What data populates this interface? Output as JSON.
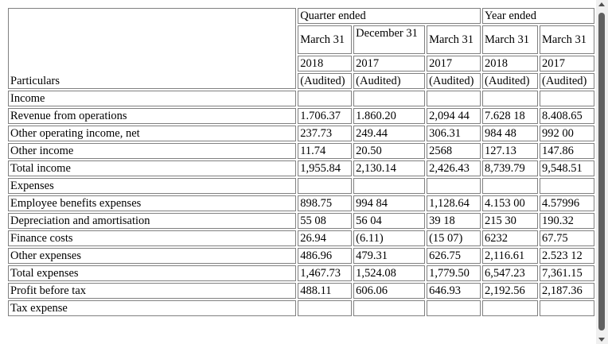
{
  "header": {
    "particulars": "Particulars",
    "quarter_ended": "Quarter ended",
    "year_ended": "Year ended",
    "dates": [
      "March 31",
      "December 31",
      "March 31",
      "March 31",
      "March 31"
    ],
    "years": [
      "2018",
      "2017",
      "2017",
      "2018",
      "2017"
    ],
    "audit": [
      "(Audited)",
      "(Audited)",
      "(Audited)",
      "(Audited)",
      "(Audited)"
    ]
  },
  "rows": [
    {
      "label": "Income",
      "values": [
        "",
        "",
        "",
        "",
        ""
      ]
    },
    {
      "label": "Revenue from operations",
      "values": [
        "1.706.37",
        "1.860.20",
        "2,094 44",
        "7.628 18",
        "8.408.65"
      ]
    },
    {
      "label": "Other operating income, net",
      "values": [
        "237.73",
        "249.44",
        "306.31",
        "984 48",
        "992 00"
      ]
    },
    {
      "label": "Other income",
      "values": [
        "11.74",
        "20.50",
        "2568",
        "127.13",
        "147.86"
      ]
    },
    {
      "label": "Total income",
      "values": [
        "1,955.84",
        "2,130.14",
        "2,426.43",
        "8,739.79",
        "9,548.51"
      ]
    },
    {
      "label": "Expenses",
      "values": [
        "",
        "",
        "",
        "",
        ""
      ]
    },
    {
      "label": "Employee benefits expenses",
      "values": [
        "898.75",
        "994 84",
        "1,128.64",
        "4.153 00",
        "4.57996"
      ]
    },
    {
      "label": "Depreciation and amortisation",
      "values": [
        "55 08",
        "56 04",
        "39 18",
        "215 30",
        "190.32"
      ]
    },
    {
      "label": "Finance costs",
      "values": [
        "26.94",
        "(6.11)",
        "(15 07)",
        "6232",
        "67.75"
      ]
    },
    {
      "label": "Other expenses",
      "values": [
        "486.96",
        "479.31",
        "626.75",
        "2,116.61",
        "2.523 12"
      ]
    },
    {
      "label": "Total expenses",
      "values": [
        "1,467.73",
        "1,524.08",
        "1,779.50",
        "6,547.23",
        "7,361.15"
      ]
    },
    {
      "label": "Profit before tax",
      "values": [
        "488.11",
        "606.06",
        "646.93",
        "2,192.56",
        "2,187.36"
      ]
    },
    {
      "label": "Tax expense",
      "values": [
        "",
        "",
        "",
        "",
        ""
      ]
    }
  ]
}
